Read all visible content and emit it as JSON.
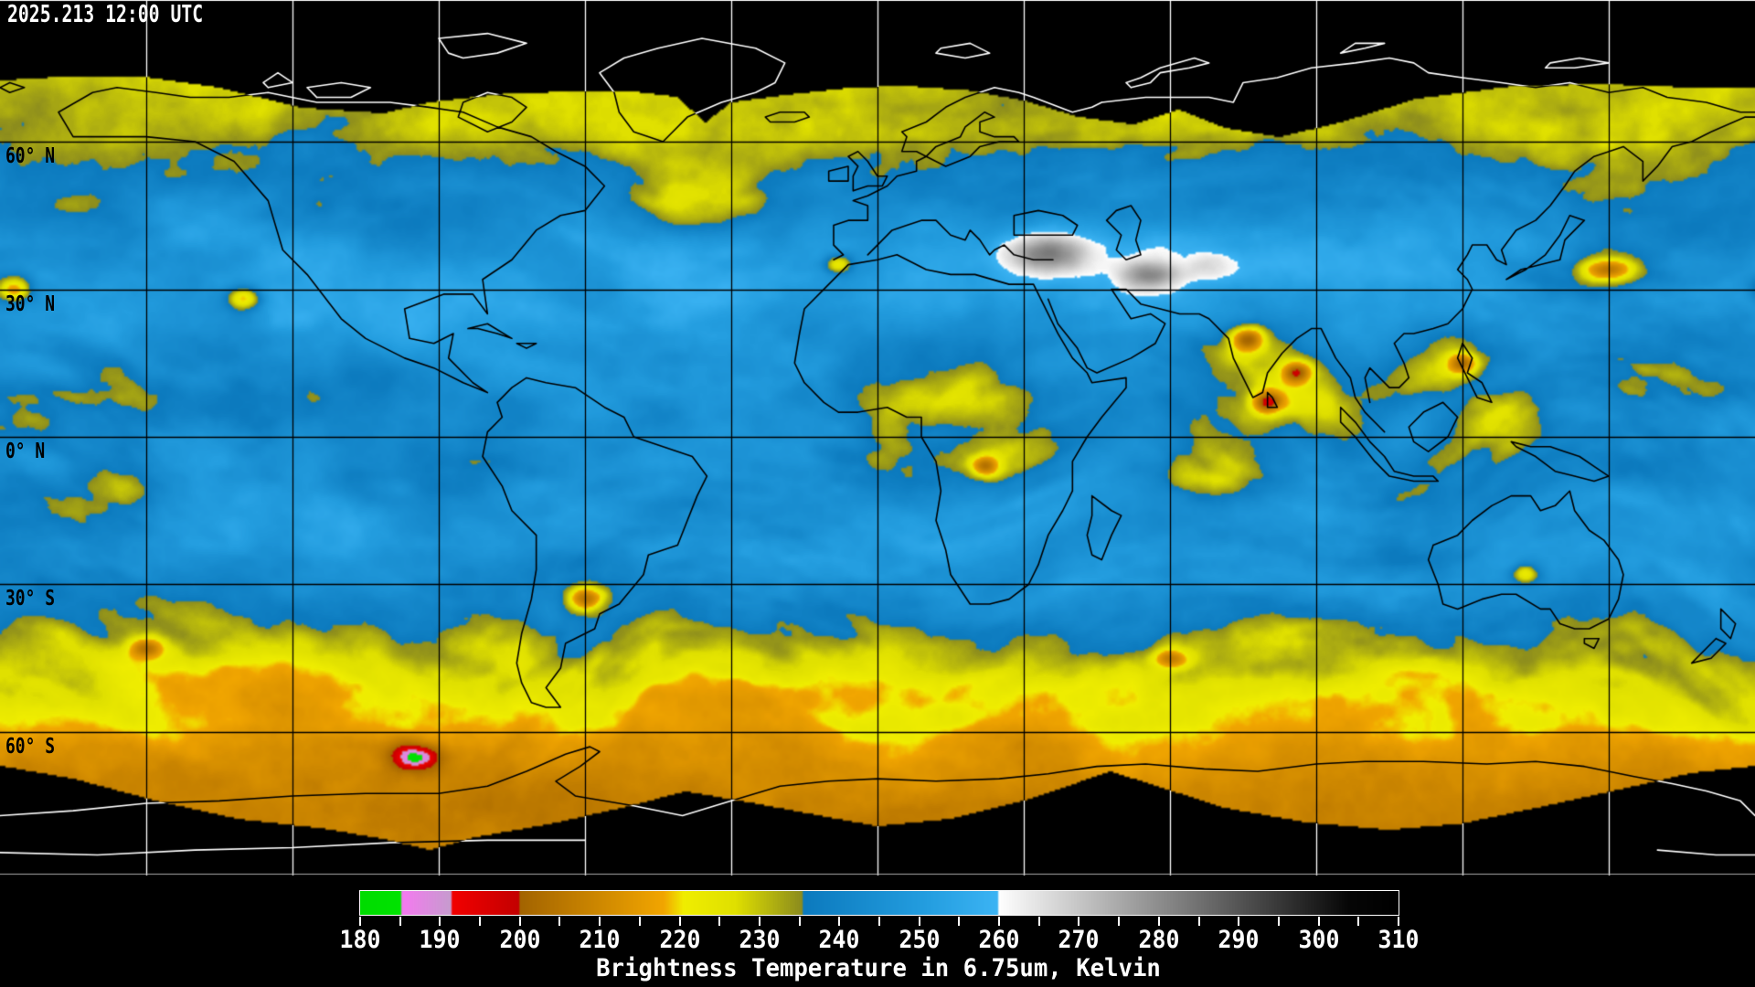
{
  "header": {
    "timestamp": "2025.213 12:00 UTC"
  },
  "map": {
    "latitude_labels": [
      {
        "label": "60° N",
        "lat": 60
      },
      {
        "label": "30° N",
        "lat": 30
      },
      {
        "label": "0° N",
        "lat": 0
      },
      {
        "label": "30° S",
        "lat": -30
      },
      {
        "label": "60° S",
        "lat": -60
      }
    ],
    "grid_interval_deg": 30,
    "colors": {
      "background": "#000000",
      "ocean_clear_blue": "#2199d8",
      "cloud_yellow": "#dcdc00",
      "cold_cloud_orange": "#f0a000",
      "very_cold_red": "#e00000",
      "warm_surface_white": "#f0f0f0",
      "coastline_over_data": "#000000",
      "coastline_over_nodata": "#ffffff",
      "grid_over_data": "#000000",
      "grid_over_nodata": "#ffffff"
    }
  },
  "colorbar": {
    "min_kelvin": 180,
    "max_kelvin": 310,
    "label_step_kelvin": 10,
    "tick_step_kelvin": 5,
    "tick_labels": [
      "180",
      "190",
      "200",
      "210",
      "220",
      "230",
      "240",
      "250",
      "260",
      "270",
      "280",
      "290",
      "300",
      "310"
    ],
    "caption": "Brightness Temperature in 6.75um, Kelvin",
    "palette": [
      {
        "t": 180,
        "c": "#00dc00"
      },
      {
        "t": 185,
        "c": "#00e400"
      },
      {
        "t": 185.2,
        "c": "#f57af0"
      },
      {
        "t": 191.3,
        "c": "#c79ccf"
      },
      {
        "t": 191.5,
        "c": "#f20000"
      },
      {
        "t": 199.8,
        "c": "#c40000"
      },
      {
        "t": 200,
        "c": "#a36400"
      },
      {
        "t": 218,
        "c": "#f2a600"
      },
      {
        "t": 220.5,
        "c": "#f0ee00"
      },
      {
        "t": 227,
        "c": "#e0e000"
      },
      {
        "t": 235.3,
        "c": "#8c8c1e"
      },
      {
        "t": 235.5,
        "c": "#0c7abe"
      },
      {
        "t": 251,
        "c": "#249ee0"
      },
      {
        "t": 259.8,
        "c": "#3cb4f4"
      },
      {
        "t": 260,
        "c": "#ffffff"
      },
      {
        "t": 304,
        "c": "#060606"
      },
      {
        "t": 310,
        "c": "#000000"
      }
    ]
  }
}
